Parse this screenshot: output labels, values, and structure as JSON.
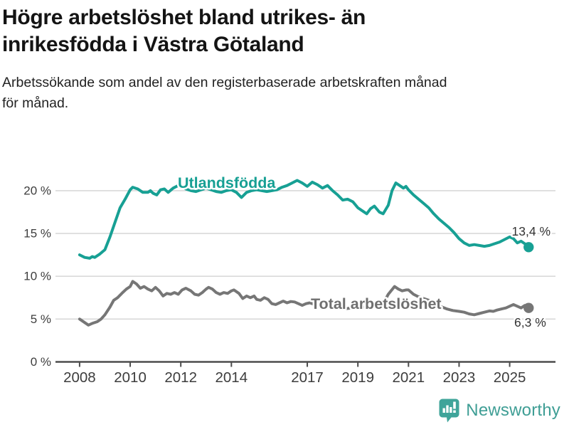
{
  "header": {
    "title_lines": [
      "Högre arbetslöshet bland utrikes- än",
      "inrikesfödda i Västra Götaland"
    ],
    "subtitle_lines": [
      "Arbetssökande som andel av den registerbaserade arbetskraften månad",
      "för månad."
    ]
  },
  "chart_data": {
    "type": "line",
    "title": "Högre arbetslöshet bland utrikes- än inrikesfödda i Västra Götaland",
    "subtitle": "Arbetssökande som andel av den registerbaserade arbetskraften månad för månad.",
    "grid": true,
    "legend": "inline-labels",
    "unit": "%",
    "x_axis": {
      "range": [
        2008,
        2026
      ],
      "ticks": [
        {
          "value": 2008,
          "label": "2008"
        },
        {
          "value": 2010,
          "label": "2010"
        },
        {
          "value": 2012,
          "label": "2012"
        },
        {
          "value": 2014,
          "label": "2014"
        },
        {
          "value": 2017,
          "label": "2017"
        },
        {
          "value": 2019,
          "label": "2019"
        },
        {
          "value": 2021,
          "label": "2021"
        },
        {
          "value": 2023,
          "label": "2023"
        },
        {
          "value": 2025,
          "label": "2025"
        }
      ]
    },
    "y_axis": {
      "range": [
        0,
        22
      ],
      "ticks": [
        {
          "value": 0,
          "label": "0 %"
        },
        {
          "value": 5,
          "label": "5 %"
        },
        {
          "value": 10,
          "label": "10 %"
        },
        {
          "value": 15,
          "label": "15 %"
        },
        {
          "value": 20,
          "label": "20 %"
        }
      ]
    },
    "series": [
      {
        "name": "Utlandsfödda",
        "color": "#17a094",
        "end_value": 13.4,
        "end_label": "13,4 %",
        "points": [
          [
            2008.0,
            12.5
          ],
          [
            2008.2,
            12.2
          ],
          [
            2008.4,
            12.1
          ],
          [
            2008.5,
            12.3
          ],
          [
            2008.6,
            12.2
          ],
          [
            2008.8,
            12.6
          ],
          [
            2009.0,
            13.1
          ],
          [
            2009.2,
            14.6
          ],
          [
            2009.4,
            16.3
          ],
          [
            2009.6,
            18.0
          ],
          [
            2009.8,
            19.0
          ],
          [
            2010.0,
            20.1
          ],
          [
            2010.1,
            20.4
          ],
          [
            2010.3,
            20.2
          ],
          [
            2010.5,
            19.8
          ],
          [
            2010.7,
            19.8
          ],
          [
            2010.8,
            20.0
          ],
          [
            2010.9,
            19.7
          ],
          [
            2011.05,
            19.5
          ],
          [
            2011.2,
            20.1
          ],
          [
            2011.35,
            20.2
          ],
          [
            2011.5,
            19.8
          ],
          [
            2011.7,
            20.3
          ],
          [
            2011.9,
            20.6
          ],
          [
            2012.0,
            20.5
          ],
          [
            2012.2,
            20.2
          ],
          [
            2012.4,
            20.0
          ],
          [
            2012.6,
            19.9
          ],
          [
            2012.8,
            20.1
          ],
          [
            2013.0,
            20.3
          ],
          [
            2013.2,
            20.1
          ],
          [
            2013.4,
            19.9
          ],
          [
            2013.6,
            19.8
          ],
          [
            2013.8,
            20.0
          ],
          [
            2014.0,
            20.1
          ],
          [
            2014.2,
            19.8
          ],
          [
            2014.4,
            19.2
          ],
          [
            2014.6,
            19.8
          ],
          [
            2014.8,
            20.0
          ],
          [
            2015.0,
            20.1
          ],
          [
            2015.2,
            20.0
          ],
          [
            2015.4,
            19.9
          ],
          [
            2015.6,
            20.0
          ],
          [
            2015.8,
            20.1
          ],
          [
            2016.0,
            20.4
          ],
          [
            2016.2,
            20.6
          ],
          [
            2016.4,
            20.9
          ],
          [
            2016.6,
            21.2
          ],
          [
            2016.8,
            20.9
          ],
          [
            2017.0,
            20.5
          ],
          [
            2017.2,
            21.0
          ],
          [
            2017.4,
            20.7
          ],
          [
            2017.6,
            20.3
          ],
          [
            2017.8,
            20.6
          ],
          [
            2018.0,
            20.0
          ],
          [
            2018.2,
            19.5
          ],
          [
            2018.4,
            18.9
          ],
          [
            2018.6,
            19.0
          ],
          [
            2018.8,
            18.7
          ],
          [
            2019.0,
            18.0
          ],
          [
            2019.2,
            17.6
          ],
          [
            2019.35,
            17.3
          ],
          [
            2019.5,
            17.9
          ],
          [
            2019.65,
            18.2
          ],
          [
            2019.85,
            17.5
          ],
          [
            2020.0,
            17.3
          ],
          [
            2020.2,
            18.3
          ],
          [
            2020.35,
            20.0
          ],
          [
            2020.5,
            20.9
          ],
          [
            2020.65,
            20.6
          ],
          [
            2020.8,
            20.3
          ],
          [
            2020.9,
            20.5
          ],
          [
            2021.0,
            20.1
          ],
          [
            2021.2,
            19.5
          ],
          [
            2021.4,
            19.0
          ],
          [
            2021.6,
            18.5
          ],
          [
            2021.8,
            18.0
          ],
          [
            2022.0,
            17.3
          ],
          [
            2022.2,
            16.7
          ],
          [
            2022.4,
            16.2
          ],
          [
            2022.6,
            15.7
          ],
          [
            2022.8,
            15.1
          ],
          [
            2023.0,
            14.4
          ],
          [
            2023.2,
            13.9
          ],
          [
            2023.4,
            13.6
          ],
          [
            2023.6,
            13.7
          ],
          [
            2023.8,
            13.6
          ],
          [
            2024.0,
            13.5
          ],
          [
            2024.2,
            13.6
          ],
          [
            2024.4,
            13.8
          ],
          [
            2024.6,
            14.0
          ],
          [
            2024.8,
            14.3
          ],
          [
            2025.0,
            14.6
          ],
          [
            2025.15,
            14.4
          ],
          [
            2025.3,
            13.9
          ],
          [
            2025.45,
            14.1
          ],
          [
            2025.6,
            13.8
          ],
          [
            2025.75,
            13.4
          ]
        ]
      },
      {
        "name": "Total arbetslöshet",
        "color": "#767676",
        "end_value": 6.3,
        "end_label": "6,3 %",
        "points": [
          [
            2008.0,
            5.0
          ],
          [
            2008.2,
            4.6
          ],
          [
            2008.35,
            4.3
          ],
          [
            2008.5,
            4.5
          ],
          [
            2008.7,
            4.7
          ],
          [
            2008.85,
            5.0
          ],
          [
            2009.0,
            5.5
          ],
          [
            2009.2,
            6.4
          ],
          [
            2009.35,
            7.2
          ],
          [
            2009.5,
            7.5
          ],
          [
            2009.7,
            8.1
          ],
          [
            2009.85,
            8.5
          ],
          [
            2010.0,
            8.8
          ],
          [
            2010.1,
            9.4
          ],
          [
            2010.25,
            9.1
          ],
          [
            2010.4,
            8.6
          ],
          [
            2010.55,
            8.8
          ],
          [
            2010.7,
            8.5
          ],
          [
            2010.85,
            8.3
          ],
          [
            2011.0,
            8.7
          ],
          [
            2011.15,
            8.3
          ],
          [
            2011.3,
            7.7
          ],
          [
            2011.45,
            8.0
          ],
          [
            2011.6,
            7.9
          ],
          [
            2011.75,
            8.1
          ],
          [
            2011.9,
            7.9
          ],
          [
            2012.05,
            8.4
          ],
          [
            2012.2,
            8.6
          ],
          [
            2012.4,
            8.3
          ],
          [
            2012.55,
            7.9
          ],
          [
            2012.7,
            7.8
          ],
          [
            2012.85,
            8.1
          ],
          [
            2013.0,
            8.5
          ],
          [
            2013.1,
            8.7
          ],
          [
            2013.25,
            8.5
          ],
          [
            2013.4,
            8.1
          ],
          [
            2013.55,
            7.9
          ],
          [
            2013.7,
            8.1
          ],
          [
            2013.85,
            8.0
          ],
          [
            2014.0,
            8.3
          ],
          [
            2014.1,
            8.4
          ],
          [
            2014.3,
            8.0
          ],
          [
            2014.45,
            7.4
          ],
          [
            2014.6,
            7.7
          ],
          [
            2014.75,
            7.5
          ],
          [
            2014.9,
            7.7
          ],
          [
            2015.0,
            7.3
          ],
          [
            2015.15,
            7.2
          ],
          [
            2015.3,
            7.5
          ],
          [
            2015.45,
            7.3
          ],
          [
            2015.6,
            6.8
          ],
          [
            2015.75,
            6.7
          ],
          [
            2015.9,
            6.9
          ],
          [
            2016.05,
            7.1
          ],
          [
            2016.2,
            6.9
          ],
          [
            2016.35,
            7.05
          ],
          [
            2016.5,
            7.0
          ],
          [
            2016.65,
            6.8
          ],
          [
            2016.8,
            6.6
          ],
          [
            2016.95,
            6.8
          ],
          [
            2017.1,
            6.9
          ],
          [
            2017.25,
            6.75
          ],
          [
            2017.4,
            6.75
          ],
          [
            2017.6,
            6.6
          ],
          [
            2017.8,
            6.4
          ],
          [
            2018.0,
            6.5
          ],
          [
            2018.25,
            6.3
          ],
          [
            2018.5,
            6.2
          ],
          [
            2018.75,
            6.3
          ],
          [
            2019.0,
            6.3
          ],
          [
            2019.25,
            6.4
          ],
          [
            2019.5,
            6.5
          ],
          [
            2019.75,
            6.6
          ],
          [
            2020.0,
            6.8
          ],
          [
            2020.2,
            7.9
          ],
          [
            2020.45,
            8.8
          ],
          [
            2020.6,
            8.5
          ],
          [
            2020.75,
            8.3
          ],
          [
            2020.9,
            8.4
          ],
          [
            2021.0,
            8.4
          ],
          [
            2021.2,
            7.9
          ],
          [
            2021.4,
            7.6
          ],
          [
            2021.6,
            7.4
          ],
          [
            2021.8,
            7.2
          ],
          [
            2022.0,
            6.9
          ],
          [
            2022.25,
            6.5
          ],
          [
            2022.5,
            6.2
          ],
          [
            2022.75,
            6.0
          ],
          [
            2023.0,
            5.9
          ],
          [
            2023.2,
            5.8
          ],
          [
            2023.4,
            5.6
          ],
          [
            2023.6,
            5.5
          ],
          [
            2023.8,
            5.65
          ],
          [
            2024.0,
            5.8
          ],
          [
            2024.2,
            5.95
          ],
          [
            2024.35,
            5.9
          ],
          [
            2024.5,
            6.05
          ],
          [
            2024.7,
            6.2
          ],
          [
            2024.85,
            6.3
          ],
          [
            2025.0,
            6.5
          ],
          [
            2025.15,
            6.7
          ],
          [
            2025.3,
            6.5
          ],
          [
            2025.45,
            6.3
          ],
          [
            2025.6,
            6.6
          ],
          [
            2025.75,
            6.3
          ]
        ]
      }
    ]
  },
  "colors": {
    "accent_teal": "#17a094",
    "series_gray": "#767676",
    "series_label_gray": "#6f6f6f",
    "grid": "#d9d9d9",
    "axis_line": "#4d4d4d",
    "axis_text": "#3d3d3d",
    "value_label_text": "#333333",
    "logo_teal": "#3fa49a"
  },
  "footer": {
    "brand": "Newsworthy"
  }
}
